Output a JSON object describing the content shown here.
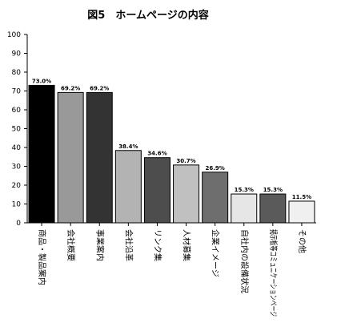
{
  "chart_data": {
    "type": "bar",
    "title": "図5　ホームページの内容",
    "xlabel": "",
    "ylabel": "",
    "ylim": [
      0,
      100
    ],
    "yticks": [
      0,
      10,
      20,
      30,
      40,
      50,
      60,
      70,
      80,
      90,
      100
    ],
    "grid": false,
    "legend": "none",
    "categories": [
      "商品・製品案内",
      "会社概要",
      "事業案内",
      "会社沿革",
      "リンク集",
      "人材募集",
      "企業イメージ",
      "自社内の設備状況",
      "掲示板等コミュニケーションページ",
      "その他"
    ],
    "values": [
      73.0,
      69.2,
      69.2,
      38.4,
      34.6,
      30.7,
      26.9,
      15.3,
      15.3,
      11.5
    ],
    "data_labels": [
      "73.0%",
      "69.2%",
      "69.2%",
      "38.4%",
      "34.6%",
      "30.7%",
      "26.9%",
      "15.3%",
      "15.3%",
      "11.5%"
    ],
    "bar_colors": [
      "#000000",
      "#999999",
      "#333333",
      "#b3b3b3",
      "#4d4d4d",
      "#c0c0c0",
      "#6e6e6e",
      "#e6e6e6",
      "#5a5a5a",
      "#f0f0f0"
    ]
  }
}
